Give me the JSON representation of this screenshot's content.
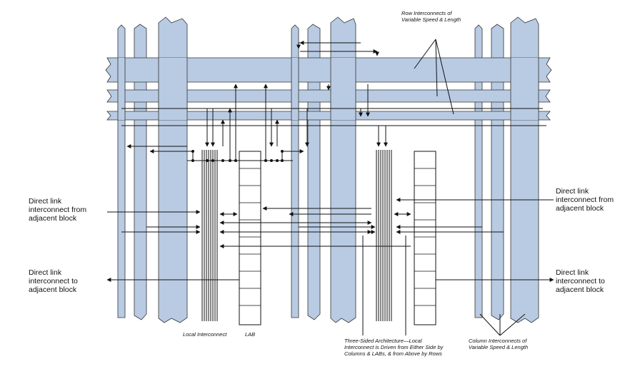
{
  "labels": {
    "row_interconnects": [
      "Row Interconnects of",
      "Variable Speed & Length"
    ],
    "left_in": [
      "Direct link",
      "interconnect from",
      "adjacent block"
    ],
    "left_out": [
      "Direct link",
      "interconnect to",
      "adjacent block"
    ],
    "right_in": [
      "Direct link",
      "interconnect from",
      "adjacent block"
    ],
    "right_out": [
      "Direct link",
      "interconnect to",
      "adjacent block"
    ],
    "local_interconnect": "Local Interconnect",
    "lab": "LAB",
    "three_sided": [
      "Three-Sided Architecture—Local",
      "Interconnect is Driven from Either Side by",
      "Columns & LABs, & from Above by Rows"
    ],
    "column_interconnects": [
      "Column Interconnects of",
      "Variable Speed & Length"
    ]
  },
  "colors": {
    "bus_fill": "#b9cbe3",
    "line": "#111111"
  }
}
